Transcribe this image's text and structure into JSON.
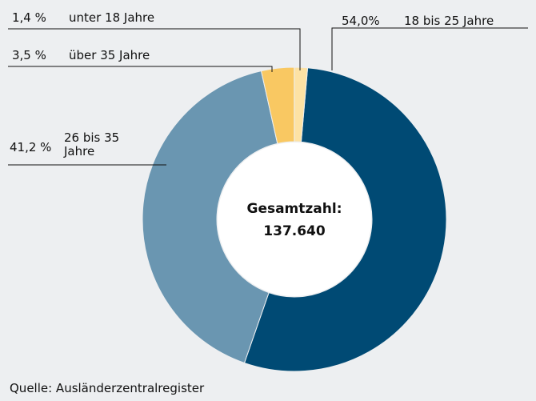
{
  "chart_data": {
    "type": "donut",
    "categories": [
      "18 bis 25 Jahre",
      "26 bis 35 Jahre",
      "über 35 Jahre",
      "unter 18 Jahre"
    ],
    "values": [
      54.0,
      41.2,
      3.5,
      1.4
    ],
    "value_labels": [
      "54,0%",
      "41,2 %",
      "3,5 %",
      "1,4 %"
    ],
    "colors": [
      "#004a74",
      "#6a96b1",
      "#f9c862",
      "#fde2a4"
    ],
    "center_text": [
      "Gesamtzahl:",
      "137.640"
    ],
    "source": "Quelle: Ausländerzentralregister"
  }
}
